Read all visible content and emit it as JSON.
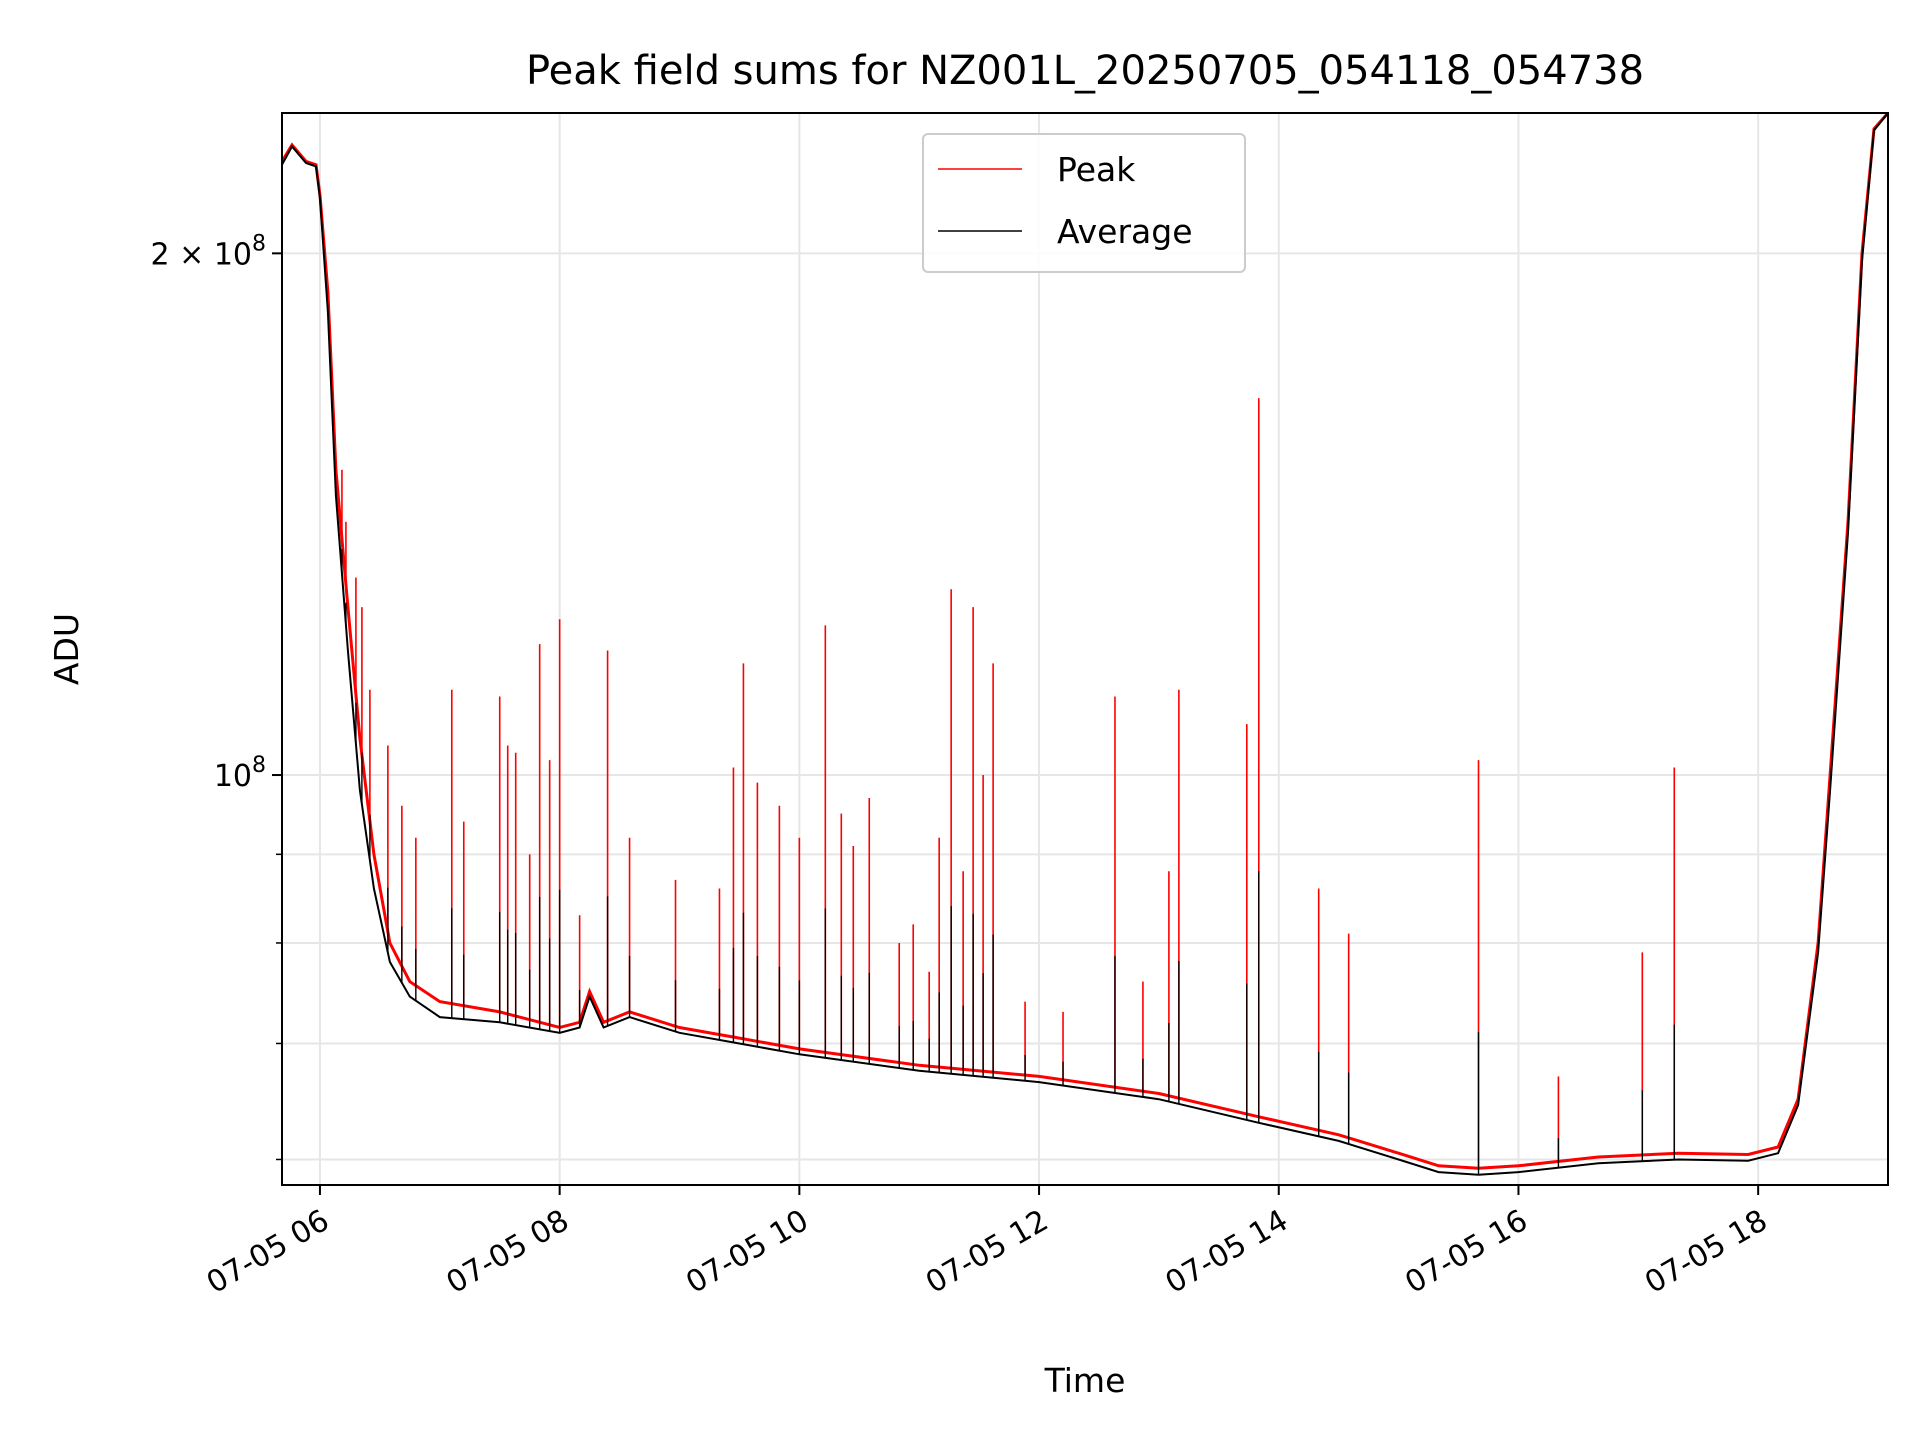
{
  "chart_data": {
    "type": "line",
    "title": "Peak field sums for NZ001L_20250705_054118_054738",
    "xlabel": "Time",
    "ylabel": "ADU",
    "y_scale": "log",
    "x_range": [
      "2025-07-05T05:41",
      "2025-07-05T19:05"
    ],
    "ylim": [
      58000000,
      241000000
    ],
    "grid": true,
    "legend_position": "upper-center",
    "x_ticks": [
      {
        "t": "2025-07-05T06:00",
        "label": "07-05 06"
      },
      {
        "t": "2025-07-05T08:00",
        "label": "07-05 08"
      },
      {
        "t": "2025-07-05T10:00",
        "label": "07-05 10"
      },
      {
        "t": "2025-07-05T12:00",
        "label": "07-05 12"
      },
      {
        "t": "2025-07-05T14:00",
        "label": "07-05 14"
      },
      {
        "t": "2025-07-05T16:00",
        "label": "07-05 16"
      },
      {
        "t": "2025-07-05T18:00",
        "label": "07-05 18"
      }
    ],
    "y_major_ticks": [
      {
        "v": 100000000,
        "mant": "",
        "base": "10",
        "exp": "8"
      },
      {
        "v": 200000000,
        "mant": "2 × ",
        "base": "10",
        "exp": "8"
      }
    ],
    "y_minor_ticks": [
      60000000,
      70000000,
      80000000,
      90000000
    ],
    "series": [
      {
        "name": "Peak",
        "color": "#ff0000",
        "points": [
          [
            "2025-07-05T05:41",
            226000000
          ],
          [
            "2025-07-05T05:46",
            231000000
          ],
          [
            "2025-07-05T05:53",
            226000000
          ],
          [
            "2025-07-05T05:58",
            225000000
          ],
          [
            "2025-07-05T06:00",
            216000000
          ],
          [
            "2025-07-05T06:04",
            190000000
          ],
          [
            "2025-07-05T06:08",
            150000000
          ],
          [
            "2025-07-05T06:14",
            125000000
          ],
          [
            "2025-07-05T06:20",
            105000000
          ],
          [
            "2025-07-05T06:27",
            90000000
          ],
          [
            "2025-07-05T06:35",
            80000000
          ],
          [
            "2025-07-05T06:45",
            76000000
          ],
          [
            "2025-07-05T07:00",
            74000000
          ],
          [
            "2025-07-05T07:30",
            73000000
          ],
          [
            "2025-07-05T08:00",
            71500000
          ],
          [
            "2025-07-05T08:10",
            72000000
          ],
          [
            "2025-07-05T08:15",
            75000000
          ],
          [
            "2025-07-05T08:22",
            72000000
          ],
          [
            "2025-07-05T08:35",
            73000000
          ],
          [
            "2025-07-05T09:00",
            71500000
          ],
          [
            "2025-07-05T09:30",
            70500000
          ],
          [
            "2025-07-05T10:00",
            69500000
          ],
          [
            "2025-07-05T11:00",
            68000000
          ],
          [
            "2025-07-05T12:00",
            67000000
          ],
          [
            "2025-07-05T13:00",
            65500000
          ],
          [
            "2025-07-05T13:50",
            63500000
          ],
          [
            "2025-07-05T14:30",
            62000000
          ],
          [
            "2025-07-05T15:00",
            60500000
          ],
          [
            "2025-07-05T15:20",
            59500000
          ],
          [
            "2025-07-05T15:40",
            59300000
          ],
          [
            "2025-07-05T16:00",
            59500000
          ],
          [
            "2025-07-05T16:40",
            60200000
          ],
          [
            "2025-07-05T17:20",
            60500000
          ],
          [
            "2025-07-05T17:55",
            60400000
          ],
          [
            "2025-07-05T18:10",
            61000000
          ],
          [
            "2025-07-05T18:20",
            65000000
          ],
          [
            "2025-07-05T18:30",
            80000000
          ],
          [
            "2025-07-05T18:36",
            100000000
          ],
          [
            "2025-07-05T18:45",
            140000000
          ],
          [
            "2025-07-05T18:52",
            200000000
          ],
          [
            "2025-07-05T18:58",
            236000000
          ],
          [
            "2025-07-05T19:05",
            241000000
          ]
        ],
        "spikes": [
          [
            "2025-07-05T06:11",
            150000000
          ],
          [
            "2025-07-05T06:13",
            140000000
          ],
          [
            "2025-07-05T06:18",
            130000000
          ],
          [
            "2025-07-05T06:21",
            125000000
          ],
          [
            "2025-07-05T06:25",
            112000000
          ],
          [
            "2025-07-05T06:34",
            104000000
          ],
          [
            "2025-07-05T06:41",
            96000000
          ],
          [
            "2025-07-05T06:48",
            92000000
          ],
          [
            "2025-07-05T07:06",
            112000000
          ],
          [
            "2025-07-05T07:12",
            94000000
          ],
          [
            "2025-07-05T07:30",
            111000000
          ],
          [
            "2025-07-05T07:34",
            104000000
          ],
          [
            "2025-07-05T07:38",
            103000000
          ],
          [
            "2025-07-05T07:45",
            90000000
          ],
          [
            "2025-07-05T07:50",
            119000000
          ],
          [
            "2025-07-05T07:55",
            102000000
          ],
          [
            "2025-07-05T08:00",
            123000000
          ],
          [
            "2025-07-05T08:10",
            83000000
          ],
          [
            "2025-07-05T08:24",
            118000000
          ],
          [
            "2025-07-05T08:35",
            92000000
          ],
          [
            "2025-07-05T08:58",
            87000000
          ],
          [
            "2025-07-05T09:20",
            86000000
          ],
          [
            "2025-07-05T09:27",
            101000000
          ],
          [
            "2025-07-05T09:32",
            116000000
          ],
          [
            "2025-07-05T09:39",
            99000000
          ],
          [
            "2025-07-05T09:50",
            96000000
          ],
          [
            "2025-07-05T10:00",
            92000000
          ],
          [
            "2025-07-05T10:13",
            122000000
          ],
          [
            "2025-07-05T10:21",
            95000000
          ],
          [
            "2025-07-05T10:27",
            91000000
          ],
          [
            "2025-07-05T10:35",
            97000000
          ],
          [
            "2025-07-05T10:50",
            80000000
          ],
          [
            "2025-07-05T10:57",
            82000000
          ],
          [
            "2025-07-05T11:05",
            77000000
          ],
          [
            "2025-07-05T11:10",
            92000000
          ],
          [
            "2025-07-05T11:16",
            128000000
          ],
          [
            "2025-07-05T11:22",
            88000000
          ],
          [
            "2025-07-05T11:27",
            125000000
          ],
          [
            "2025-07-05T11:32",
            100000000
          ],
          [
            "2025-07-05T11:37",
            116000000
          ],
          [
            "2025-07-05T11:53",
            74000000
          ],
          [
            "2025-07-05T12:12",
            73000000
          ],
          [
            "2025-07-05T12:38",
            111000000
          ],
          [
            "2025-07-05T12:52",
            76000000
          ],
          [
            "2025-07-05T13:05",
            88000000
          ],
          [
            "2025-07-05T13:10",
            112000000
          ],
          [
            "2025-07-05T13:44",
            107000000
          ],
          [
            "2025-07-05T13:50",
            165000000
          ],
          [
            "2025-07-05T14:20",
            86000000
          ],
          [
            "2025-07-05T14:35",
            81000000
          ],
          [
            "2025-07-05T15:40",
            102000000
          ],
          [
            "2025-07-05T16:20",
            67000000
          ],
          [
            "2025-07-05T17:02",
            79000000
          ],
          [
            "2025-07-05T17:18",
            101000000
          ]
        ]
      },
      {
        "name": "Average",
        "color": "#000000",
        "points": [
          [
            "2025-07-05T05:41",
            225000000
          ],
          [
            "2025-07-05T05:46",
            230500000
          ],
          [
            "2025-07-05T05:53",
            225500000
          ],
          [
            "2025-07-05T05:58",
            224500000
          ],
          [
            "2025-07-05T06:00",
            215000000
          ],
          [
            "2025-07-05T06:04",
            185000000
          ],
          [
            "2025-07-05T06:08",
            145000000
          ],
          [
            "2025-07-05T06:14",
            118000000
          ],
          [
            "2025-07-05T06:20",
            98000000
          ],
          [
            "2025-07-05T06:27",
            86000000
          ],
          [
            "2025-07-05T06:35",
            78000000
          ],
          [
            "2025-07-05T06:45",
            74500000
          ],
          [
            "2025-07-05T07:00",
            72500000
          ],
          [
            "2025-07-05T07:30",
            72000000
          ],
          [
            "2025-07-05T08:00",
            71000000
          ],
          [
            "2025-07-05T08:10",
            71500000
          ],
          [
            "2025-07-05T08:15",
            74500000
          ],
          [
            "2025-07-05T08:22",
            71500000
          ],
          [
            "2025-07-05T08:35",
            72500000
          ],
          [
            "2025-07-05T09:00",
            71000000
          ],
          [
            "2025-07-05T09:30",
            70000000
          ],
          [
            "2025-07-05T10:00",
            69000000
          ],
          [
            "2025-07-05T11:00",
            67500000
          ],
          [
            "2025-07-05T12:00",
            66500000
          ],
          [
            "2025-07-05T13:00",
            65000000
          ],
          [
            "2025-07-05T13:50",
            63000000
          ],
          [
            "2025-07-05T14:30",
            61500000
          ],
          [
            "2025-07-05T15:00",
            60000000
          ],
          [
            "2025-07-05T15:20",
            59000000
          ],
          [
            "2025-07-05T15:40",
            58800000
          ],
          [
            "2025-07-05T16:00",
            59000000
          ],
          [
            "2025-07-05T16:40",
            59700000
          ],
          [
            "2025-07-05T17:20",
            60000000
          ],
          [
            "2025-07-05T17:55",
            59900000
          ],
          [
            "2025-07-05T18:10",
            60500000
          ],
          [
            "2025-07-05T18:20",
            64500000
          ],
          [
            "2025-07-05T18:30",
            79000000
          ],
          [
            "2025-07-05T18:36",
            98000000
          ],
          [
            "2025-07-05T18:45",
            138000000
          ],
          [
            "2025-07-05T18:52",
            198000000
          ],
          [
            "2025-07-05T18:58",
            235500000
          ],
          [
            "2025-07-05T19:05",
            241000000
          ]
        ]
      }
    ]
  }
}
